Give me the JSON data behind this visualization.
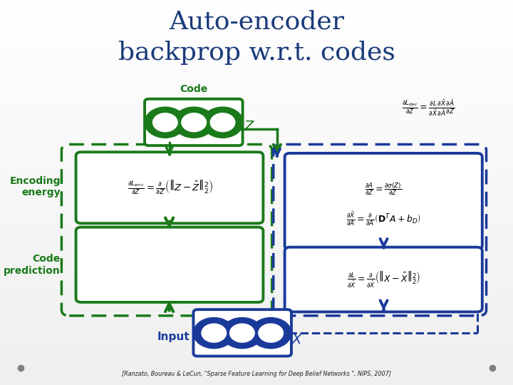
{
  "title_line1": "Auto-encoder",
  "title_line2": "backprop w.r.t. codes",
  "title_color": "#1a3a7a",
  "bg_gradient_top": "#e8e8e8",
  "bg_gradient_bottom": "#c0c0c0",
  "green_color": "#1a7a1a",
  "blue_color": "#1a3a9a",
  "label_encoding": "Encoding\nenergy",
  "label_code_pred": "Code\nprediction",
  "label_code": "Code",
  "label_input": "Input",
  "citation": "[Ranzato, Boureau & LeCun, \"Sparse Feature Learning for Deep Belief Networks \", NIPS, 2007]",
  "fig_width": 7.2,
  "fig_height": 5.4,
  "dpi": 100
}
